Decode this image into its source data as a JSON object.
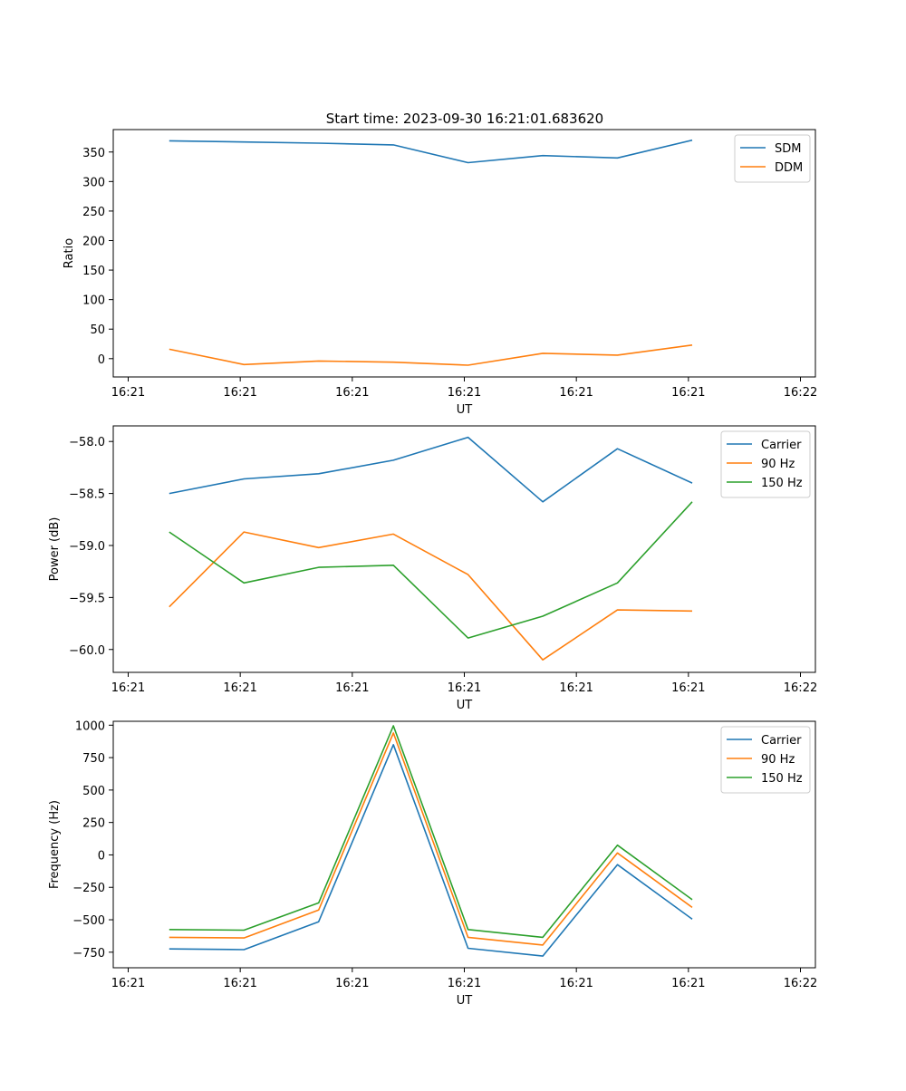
{
  "figure_title": "Start time: 2023-09-30 16:21:01.683620",
  "chart_data": [
    {
      "type": "line",
      "id": "ratio",
      "xlabel": "UT",
      "ylabel": "Ratio",
      "xlim": [
        0,
        9.4
      ],
      "ylim": [
        -31,
        388
      ],
      "x": [
        0.75,
        1.75,
        2.75,
        3.75,
        4.75,
        5.75,
        6.75,
        7.75
      ],
      "xticks": [
        0.2,
        1.7,
        3.2,
        4.7,
        6.2,
        7.7,
        9.2
      ],
      "xticklabels": [
        "16:21",
        "16:21",
        "16:21",
        "16:21",
        "16:21",
        "16:21",
        "16:22"
      ],
      "yticks": [
        0,
        50,
        100,
        150,
        200,
        250,
        300,
        350
      ],
      "yticklabels": [
        "0",
        "50",
        "100",
        "150",
        "200",
        "250",
        "300",
        "350"
      ],
      "legend_position": "top-right",
      "series": [
        {
          "name": "SDM",
          "color": "#1f77b4",
          "values": [
            369,
            367,
            365,
            362,
            332,
            344,
            340,
            370
          ]
        },
        {
          "name": "DDM",
          "color": "#ff7f0e",
          "values": [
            16,
            -10,
            -4,
            -6,
            -11,
            9,
            6,
            23
          ]
        }
      ]
    },
    {
      "type": "line",
      "id": "power",
      "xlabel": "UT",
      "ylabel": "Power (dB)",
      "xlim": [
        0,
        9.4
      ],
      "ylim": [
        -60.22,
        -57.85
      ],
      "x": [
        0.75,
        1.75,
        2.75,
        3.75,
        4.75,
        5.75,
        6.75,
        7.75
      ],
      "xticks": [
        0.2,
        1.7,
        3.2,
        4.7,
        6.2,
        7.7,
        9.2
      ],
      "xticklabels": [
        "16:21",
        "16:21",
        "16:21",
        "16:21",
        "16:21",
        "16:21",
        "16:22"
      ],
      "yticks": [
        -60.0,
        -59.5,
        -59.0,
        -58.5,
        -58.0
      ],
      "yticklabels": [
        "−60.0",
        "−59.5",
        "−59.0",
        "−58.5",
        "−58.0"
      ],
      "legend_position": "top-right",
      "series": [
        {
          "name": "Carrier",
          "color": "#1f77b4",
          "values": [
            -58.5,
            -58.36,
            -58.31,
            -58.18,
            -57.96,
            -58.58,
            -58.07,
            -58.4
          ]
        },
        {
          "name": "90 Hz",
          "color": "#ff7f0e",
          "values": [
            -59.59,
            -58.87,
            -59.02,
            -58.89,
            -59.28,
            -60.1,
            -59.62,
            -59.63
          ]
        },
        {
          "name": "150 Hz",
          "color": "#2ca02c",
          "values": [
            -58.87,
            -59.36,
            -59.21,
            -59.19,
            -59.89,
            -59.68,
            -59.36,
            -58.58
          ]
        }
      ]
    },
    {
      "type": "line",
      "id": "frequency",
      "xlabel": "UT",
      "ylabel": "Frequency (Hz)",
      "xlim": [
        0,
        9.4
      ],
      "ylim": [
        -870,
        1030
      ],
      "x": [
        0.75,
        1.75,
        2.75,
        3.75,
        4.75,
        5.75,
        6.75,
        7.75
      ],
      "xticks": [
        0.2,
        1.7,
        3.2,
        4.7,
        6.2,
        7.7,
        9.2
      ],
      "xticklabels": [
        "16:21",
        "16:21",
        "16:21",
        "16:21",
        "16:21",
        "16:21",
        "16:22"
      ],
      "yticks": [
        -750,
        -500,
        -250,
        0,
        250,
        500,
        750,
        1000
      ],
      "yticklabels": [
        "−750",
        "−500",
        "−250",
        "0",
        "250",
        "500",
        "750",
        "1000"
      ],
      "legend_position": "top-right",
      "series": [
        {
          "name": "Carrier",
          "color": "#1f77b4",
          "values": [
            -725,
            -730,
            -515,
            850,
            -720,
            -780,
            -75,
            -495
          ]
        },
        {
          "name": "90 Hz",
          "color": "#ff7f0e",
          "values": [
            -635,
            -640,
            -425,
            940,
            -635,
            -695,
            15,
            -405
          ]
        },
        {
          "name": "150 Hz",
          "color": "#2ca02c",
          "values": [
            -575,
            -580,
            -370,
            995,
            -575,
            -635,
            75,
            -345
          ]
        }
      ]
    }
  ]
}
